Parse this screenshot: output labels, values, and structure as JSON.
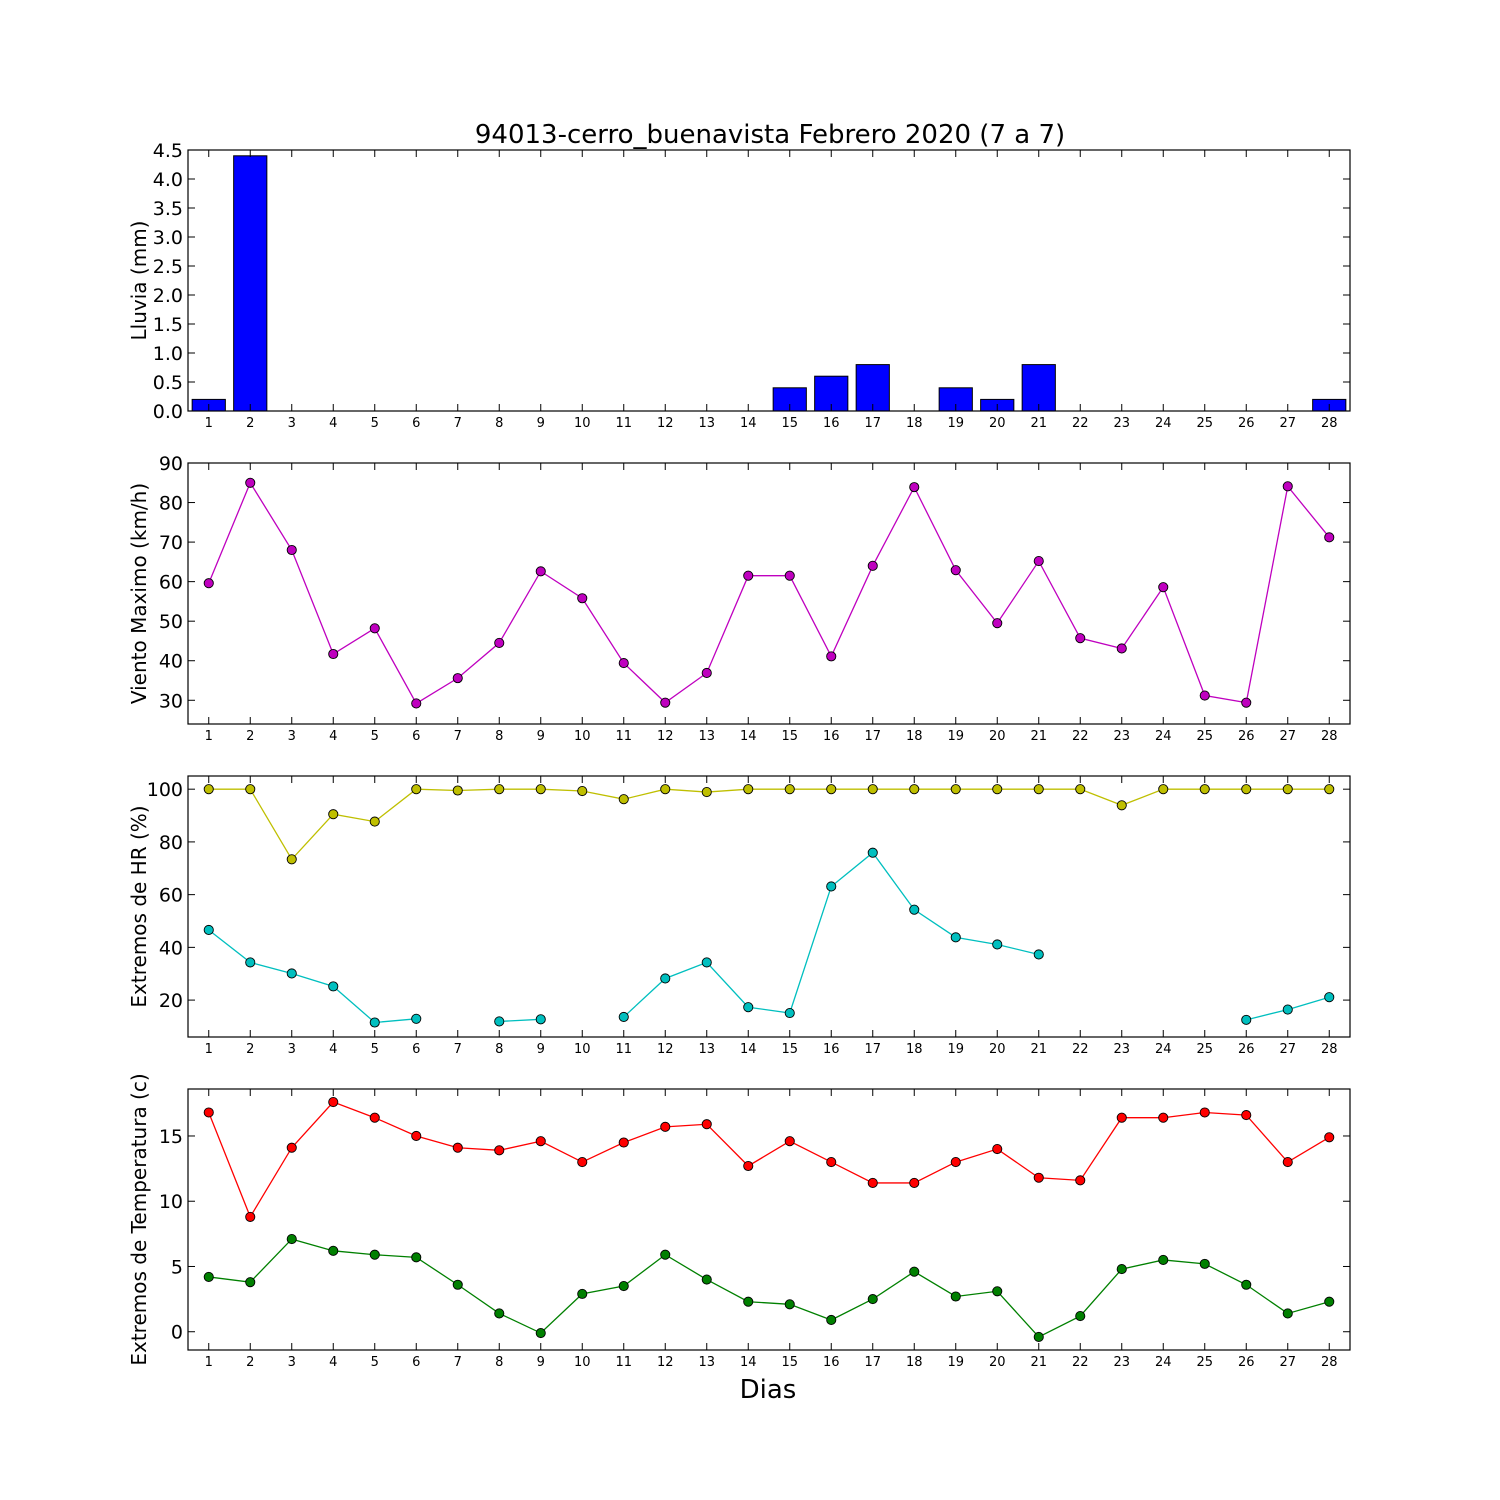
{
  "title": "94013-cerro_buenavista Febrero 2020  (7 a 7)",
  "xlabel": "Dias",
  "chart_data": [
    {
      "type": "bar",
      "ylabel": "Lluvia (mm)",
      "ylim": [
        0,
        4.5
      ],
      "yticks": [
        "0.0",
        "0.5",
        "1.0",
        "1.5",
        "2.0",
        "2.5",
        "3.0",
        "3.5",
        "4.0",
        "4.5"
      ],
      "categories": [
        "1",
        "2",
        "3",
        "4",
        "5",
        "6",
        "7",
        "8",
        "9",
        "10",
        "11",
        "12",
        "13",
        "14",
        "15",
        "16",
        "17",
        "18",
        "19",
        "20",
        "21",
        "22",
        "23",
        "24",
        "25",
        "26",
        "27",
        "28"
      ],
      "series": [
        {
          "color": "#0000ff",
          "values": [
            0.2,
            4.4,
            0,
            0,
            0,
            0,
            0,
            0,
            0,
            0,
            0,
            0,
            0,
            0,
            0.4,
            0.6,
            0.8,
            0,
            0.4,
            0.2,
            0.8,
            0,
            0,
            0,
            0,
            0,
            0,
            0.2
          ]
        }
      ]
    },
    {
      "type": "line",
      "ylabel": "Viento Maximo (km/h)",
      "ylim": [
        24,
        90
      ],
      "yticks": [
        "30",
        "40",
        "50",
        "60",
        "70",
        "80",
        "90"
      ],
      "categories": [
        "1",
        "2",
        "3",
        "4",
        "5",
        "6",
        "7",
        "8",
        "9",
        "10",
        "11",
        "12",
        "13",
        "14",
        "15",
        "16",
        "17",
        "18",
        "19",
        "20",
        "21",
        "22",
        "23",
        "24",
        "25",
        "26",
        "27",
        "28"
      ],
      "series": [
        {
          "color": "#bf00bf",
          "values": [
            59.6,
            85,
            68,
            41.7,
            48.2,
            29.2,
            35.6,
            44.5,
            62.6,
            55.8,
            39.4,
            29.4,
            36.9,
            61.5,
            61.5,
            41.1,
            64,
            83.9,
            62.9,
            49.5,
            65.2,
            45.7,
            43.1,
            58.6,
            31.2,
            29.4,
            84.1,
            71.2
          ]
        }
      ]
    },
    {
      "type": "line",
      "ylabel": "Extremos de HR (%)",
      "ylim": [
        6,
        105
      ],
      "yticks": [
        "20",
        "40",
        "60",
        "80",
        "100"
      ],
      "categories": [
        "1",
        "2",
        "3",
        "4",
        "5",
        "6",
        "7",
        "8",
        "9",
        "10",
        "11",
        "12",
        "13",
        "14",
        "15",
        "16",
        "17",
        "18",
        "19",
        "20",
        "21",
        "22",
        "23",
        "24",
        "25",
        "26",
        "27",
        "28"
      ],
      "series": [
        {
          "color": "#bfbf00",
          "values": [
            100,
            100,
            73.4,
            90.5,
            87.7,
            100,
            99.5,
            100,
            100,
            99.3,
            96.2,
            100,
            98.9,
            100,
            100,
            100,
            100,
            100,
            100,
            100,
            100,
            100,
            93.9,
            100,
            100,
            100,
            100,
            100
          ]
        },
        {
          "color": "#00bfbf",
          "values": [
            46.6,
            34.3,
            30.1,
            25.2,
            11.5,
            12.9,
            null,
            11.9,
            12.7,
            null,
            13.6,
            28.2,
            34.3,
            17.3,
            15.1,
            63.1,
            75.9,
            54.3,
            43.8,
            41.1,
            37.3,
            null,
            null,
            null,
            null,
            12.5,
            16.4,
            21.1
          ]
        }
      ]
    },
    {
      "type": "line",
      "ylabel": "Extremos de Temperatura (c)",
      "ylim": [
        -1.4,
        18.6
      ],
      "yticks": [
        "0",
        "5",
        "10",
        "15"
      ],
      "categories": [
        "1",
        "2",
        "3",
        "4",
        "5",
        "6",
        "7",
        "8",
        "9",
        "10",
        "11",
        "12",
        "13",
        "14",
        "15",
        "16",
        "17",
        "18",
        "19",
        "20",
        "21",
        "22",
        "23",
        "24",
        "25",
        "26",
        "27",
        "28"
      ],
      "series": [
        {
          "color": "#ff0000",
          "values": [
            16.8,
            8.8,
            14.1,
            17.6,
            16.4,
            15.0,
            14.1,
            13.9,
            14.6,
            13.0,
            14.5,
            15.7,
            15.9,
            12.7,
            14.6,
            13.0,
            11.4,
            11.4,
            13.0,
            14.0,
            11.8,
            11.6,
            16.4,
            16.4,
            16.8,
            16.6,
            13.0,
            14.9
          ]
        },
        {
          "color": "#008000",
          "values": [
            4.2,
            3.8,
            7.1,
            6.2,
            5.9,
            5.7,
            3.6,
            1.4,
            -0.1,
            2.9,
            3.5,
            5.9,
            4.0,
            2.3,
            2.1,
            0.9,
            2.5,
            4.6,
            2.7,
            3.1,
            -0.4,
            1.2,
            4.8,
            5.5,
            5.2,
            3.6,
            1.4,
            2.3
          ]
        }
      ]
    }
  ]
}
